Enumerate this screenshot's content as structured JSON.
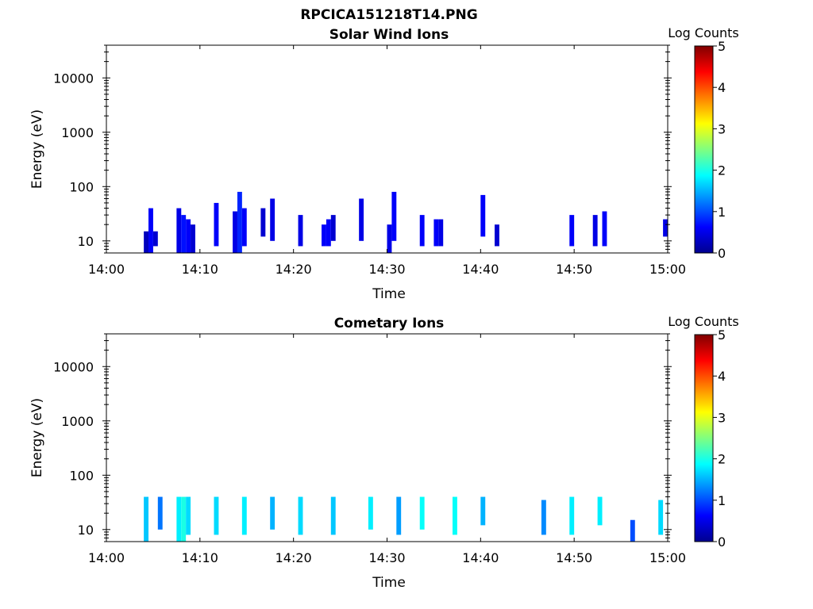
{
  "figure_title": "RPCICA151218T14.PNG",
  "colorbar": {
    "label": "Log Counts",
    "min": 0,
    "max": 5,
    "ticks": [
      "0",
      "1",
      "2",
      "3",
      "4",
      "5"
    ],
    "colormap": "jet"
  },
  "chart_data": [
    {
      "type": "heatmap",
      "title": "Solar Wind Ions",
      "xlabel": "Time",
      "ylabel": "Energy (eV)",
      "x_ticks": [
        "14:00",
        "14:10",
        "14:20",
        "14:30",
        "14:40",
        "14:50",
        "15:00"
      ],
      "xlim": [
        "14:00",
        "15:00"
      ],
      "y_scale": "log",
      "ylim": [
        6,
        40000
      ],
      "y_ticks": [
        "10",
        "100",
        "1000",
        "10000"
      ],
      "y_tick_values": [
        10,
        100,
        1000,
        10000
      ],
      "value_range": [
        0,
        5
      ],
      "cells": [
        {
          "t": "14:04:00",
          "t_end": "14:04:30",
          "e_lo": 6,
          "e_hi": 15,
          "v": 0.3
        },
        {
          "t": "14:04:30",
          "t_end": "14:05:00",
          "e_lo": 6,
          "e_hi": 40,
          "v": 0.6
        },
        {
          "t": "14:05:00",
          "t_end": "14:05:30",
          "e_lo": 8,
          "e_hi": 15,
          "v": 0.4
        },
        {
          "t": "14:07:30",
          "t_end": "14:08:00",
          "e_lo": 6,
          "e_hi": 40,
          "v": 0.5
        },
        {
          "t": "14:08:00",
          "t_end": "14:08:30",
          "e_lo": 6,
          "e_hi": 30,
          "v": 0.7
        },
        {
          "t": "14:08:30",
          "t_end": "14:09:00",
          "e_lo": 6,
          "e_hi": 25,
          "v": 0.6
        },
        {
          "t": "14:09:00",
          "t_end": "14:09:30",
          "e_lo": 6,
          "e_hi": 20,
          "v": 0.4
        },
        {
          "t": "14:11:30",
          "t_end": "14:12:00",
          "e_lo": 8,
          "e_hi": 50,
          "v": 0.6
        },
        {
          "t": "14:13:30",
          "t_end": "14:14:00",
          "e_lo": 6,
          "e_hi": 35,
          "v": 0.5
        },
        {
          "t": "14:14:00",
          "t_end": "14:14:30",
          "e_lo": 6,
          "e_hi": 80,
          "v": 0.8
        },
        {
          "t": "14:14:30",
          "t_end": "14:15:00",
          "e_lo": 8,
          "e_hi": 40,
          "v": 0.6
        },
        {
          "t": "14:16:30",
          "t_end": "14:17:00",
          "e_lo": 12,
          "e_hi": 40,
          "v": 0.4
        },
        {
          "t": "14:17:30",
          "t_end": "14:18:00",
          "e_lo": 10,
          "e_hi": 60,
          "v": 0.5
        },
        {
          "t": "14:20:30",
          "t_end": "14:21:00",
          "e_lo": 8,
          "e_hi": 30,
          "v": 0.5
        },
        {
          "t": "14:23:00",
          "t_end": "14:23:30",
          "e_lo": 8,
          "e_hi": 20,
          "v": 0.6
        },
        {
          "t": "14:23:30",
          "t_end": "14:24:00",
          "e_lo": 8,
          "e_hi": 25,
          "v": 0.6
        },
        {
          "t": "14:24:00",
          "t_end": "14:24:30",
          "e_lo": 10,
          "e_hi": 30,
          "v": 0.4
        },
        {
          "t": "14:27:00",
          "t_end": "14:27:30",
          "e_lo": 10,
          "e_hi": 60,
          "v": 0.5
        },
        {
          "t": "14:30:00",
          "t_end": "14:30:30",
          "e_lo": 6,
          "e_hi": 20,
          "v": 0.5
        },
        {
          "t": "14:30:30",
          "t_end": "14:31:00",
          "e_lo": 10,
          "e_hi": 80,
          "v": 0.6
        },
        {
          "t": "14:33:30",
          "t_end": "14:34:00",
          "e_lo": 8,
          "e_hi": 30,
          "v": 0.6
        },
        {
          "t": "14:35:00",
          "t_end": "14:35:30",
          "e_lo": 8,
          "e_hi": 25,
          "v": 0.6
        },
        {
          "t": "14:35:30",
          "t_end": "14:36:00",
          "e_lo": 8,
          "e_hi": 25,
          "v": 0.5
        },
        {
          "t": "14:40:00",
          "t_end": "14:40:30",
          "e_lo": 12,
          "e_hi": 70,
          "v": 0.6
        },
        {
          "t": "14:41:30",
          "t_end": "14:42:00",
          "e_lo": 8,
          "e_hi": 20,
          "v": 0.4
        },
        {
          "t": "14:49:30",
          "t_end": "14:50:00",
          "e_lo": 8,
          "e_hi": 30,
          "v": 0.6
        },
        {
          "t": "14:52:00",
          "t_end": "14:52:30",
          "e_lo": 8,
          "e_hi": 30,
          "v": 0.5
        },
        {
          "t": "14:53:00",
          "t_end": "14:53:30",
          "e_lo": 8,
          "e_hi": 35,
          "v": 0.6
        },
        {
          "t": "14:59:30",
          "t_end": "15:00:00",
          "e_lo": 12,
          "e_hi": 25,
          "v": 0.5
        }
      ]
    },
    {
      "type": "heatmap",
      "title": "Cometary Ions",
      "xlabel": "Time",
      "ylabel": "Energy (eV)",
      "x_ticks": [
        "14:00",
        "14:10",
        "14:20",
        "14:30",
        "14:40",
        "14:50",
        "15:00"
      ],
      "xlim": [
        "14:00",
        "15:00"
      ],
      "y_scale": "log",
      "ylim": [
        6,
        40000
      ],
      "y_ticks": [
        "10",
        "100",
        "1000",
        "10000"
      ],
      "y_tick_values": [
        10,
        100,
        1000,
        10000
      ],
      "value_range": [
        0,
        5
      ],
      "cells": [
        {
          "t": "14:04:00",
          "t_end": "14:04:30",
          "e_lo": 6,
          "e_hi": 40,
          "v": 1.6
        },
        {
          "t": "14:05:30",
          "t_end": "14:06:00",
          "e_lo": 10,
          "e_hi": 40,
          "v": 1.2
        },
        {
          "t": "14:07:30",
          "t_end": "14:08:00",
          "e_lo": 6,
          "e_hi": 40,
          "v": 1.8
        },
        {
          "t": "14:08:00",
          "t_end": "14:08:30",
          "e_lo": 6,
          "e_hi": 40,
          "v": 2.0
        },
        {
          "t": "14:08:30",
          "t_end": "14:09:00",
          "e_lo": 8,
          "e_hi": 40,
          "v": 1.7
        },
        {
          "t": "14:11:30",
          "t_end": "14:12:00",
          "e_lo": 8,
          "e_hi": 40,
          "v": 1.7
        },
        {
          "t": "14:14:30",
          "t_end": "14:15:00",
          "e_lo": 8,
          "e_hi": 40,
          "v": 1.8
        },
        {
          "t": "14:17:30",
          "t_end": "14:18:00",
          "e_lo": 10,
          "e_hi": 40,
          "v": 1.5
        },
        {
          "t": "14:20:30",
          "t_end": "14:21:00",
          "e_lo": 8,
          "e_hi": 40,
          "v": 1.7
        },
        {
          "t": "14:24:00",
          "t_end": "14:24:30",
          "e_lo": 8,
          "e_hi": 40,
          "v": 1.6
        },
        {
          "t": "14:28:00",
          "t_end": "14:28:30",
          "e_lo": 10,
          "e_hi": 40,
          "v": 1.8
        },
        {
          "t": "14:31:00",
          "t_end": "14:31:30",
          "e_lo": 8,
          "e_hi": 40,
          "v": 1.4
        },
        {
          "t": "14:33:30",
          "t_end": "14:34:00",
          "e_lo": 10,
          "e_hi": 40,
          "v": 1.9
        },
        {
          "t": "14:37:00",
          "t_end": "14:37:30",
          "e_lo": 8,
          "e_hi": 40,
          "v": 1.9
        },
        {
          "t": "14:40:00",
          "t_end": "14:40:30",
          "e_lo": 12,
          "e_hi": 40,
          "v": 1.5
        },
        {
          "t": "14:46:30",
          "t_end": "14:47:00",
          "e_lo": 8,
          "e_hi": 35,
          "v": 1.3
        },
        {
          "t": "14:49:30",
          "t_end": "14:50:00",
          "e_lo": 8,
          "e_hi": 40,
          "v": 1.8
        },
        {
          "t": "14:52:30",
          "t_end": "14:53:00",
          "e_lo": 12,
          "e_hi": 40,
          "v": 1.8
        },
        {
          "t": "14:56:00",
          "t_end": "14:56:30",
          "e_lo": 6,
          "e_hi": 15,
          "v": 1.0
        },
        {
          "t": "14:59:00",
          "t_end": "14:59:30",
          "e_lo": 8,
          "e_hi": 35,
          "v": 1.7
        }
      ]
    }
  ]
}
